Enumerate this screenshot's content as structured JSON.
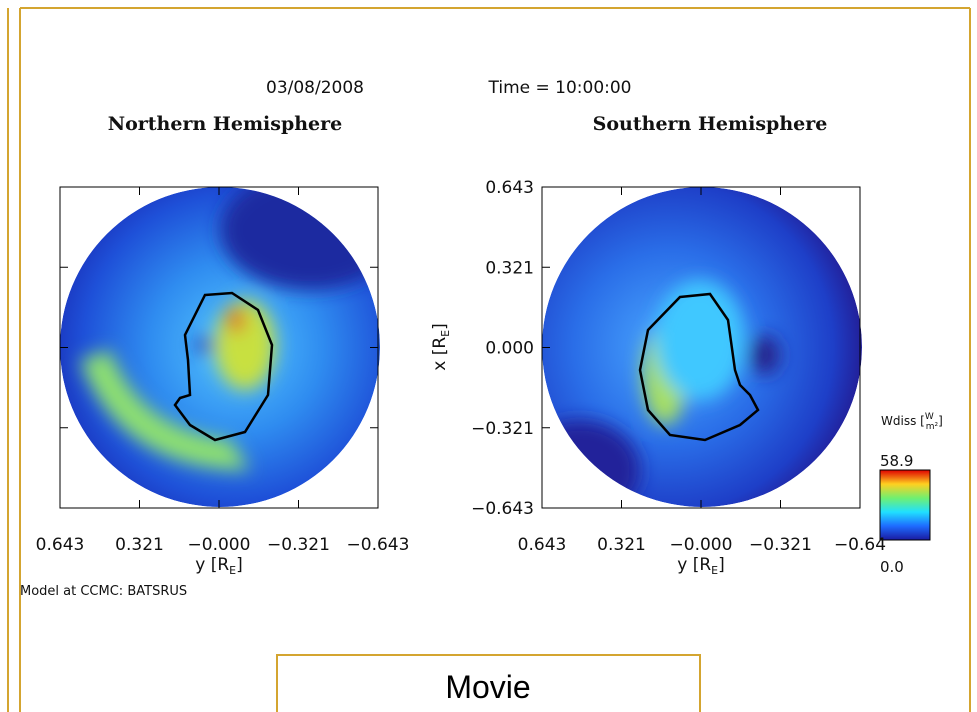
{
  "header": {
    "date": "03/08/2008",
    "time": "Time = 10:00:00"
  },
  "panels": [
    {
      "title": "Northern Hemisphere",
      "x_ticks": [
        "0.643",
        "0.321",
        "−0.000",
        "−0.321",
        "−0.643"
      ],
      "x_label": {
        "main": "y [R",
        "sub": "E",
        "end": "]"
      }
    },
    {
      "title": "Southern Hemisphere",
      "x_ticks": [
        "0.643",
        "0.321",
        "−0.000",
        "−0.321",
        "−0.64"
      ],
      "x_label": {
        "main": "y [R",
        "sub": "E",
        "end": "]"
      },
      "y_ticks": [
        "0.643",
        "0.321",
        "0.000",
        "−0.321",
        "−0.643"
      ],
      "y_label": {
        "main": "x [R",
        "sub": "E",
        "end": "]"
      }
    }
  ],
  "colorbar": {
    "label": "Wdiss [",
    "unit_num": "W",
    "unit_den": "m²",
    "label_end": "]",
    "max": "58.9",
    "min": "0.0"
  },
  "footnote": "Model at CCMC: BATSRUS",
  "button": "Movie"
}
